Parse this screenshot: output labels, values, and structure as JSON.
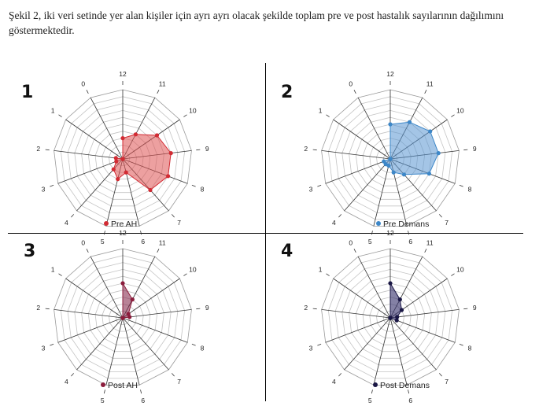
{
  "caption": "Şekil 2, iki veri setinde yer alan kişiler için ayrı ayrı olacak şekilde toplam pre ve post hastalık sayılarının dağılımını göstermektedir.",
  "chart_data": [
    {
      "type": "radar",
      "number": "1",
      "series": [
        {
          "name": "Pre AH",
          "color": "#d22b33",
          "fill": "rgba(222,82,82,0.55)",
          "values": [
            3,
            4,
            6,
            7,
            7,
            6,
            2,
            3,
            2,
            1,
            1,
            0,
            0
          ]
        }
      ],
      "axes": [
        "12",
        "11",
        "10",
        "9",
        "8",
        "7",
        "6",
        "5",
        "4",
        "3",
        "2",
        "1",
        "0"
      ],
      "rmax": 10
    },
    {
      "type": "radar",
      "number": "2",
      "series": [
        {
          "name": "Pre Demans",
          "color": "#3d87c8",
          "fill": "rgba(90,150,210,0.55)",
          "values": [
            5,
            6,
            7,
            7,
            6,
            3,
            2,
            1,
            1,
            1,
            0,
            0,
            0
          ]
        }
      ],
      "axes": [
        "12",
        "11",
        "10",
        "9",
        "8",
        "7",
        "6",
        "5",
        "4",
        "3",
        "2",
        "1",
        "0"
      ],
      "rmax": 10
    },
    {
      "type": "radar",
      "number": "3",
      "series": [
        {
          "name": "Post AH",
          "color": "#8b1d3c",
          "fill": "rgba(125,30,65,0.55)",
          "values": [
            5,
            3,
            1,
            1,
            0,
            0,
            0,
            0,
            0,
            0,
            0,
            0,
            0
          ]
        }
      ],
      "axes": [
        "12",
        "11",
        "10",
        "9",
        "8",
        "7",
        "6",
        "5",
        "4",
        "3",
        "2",
        "1",
        "0"
      ],
      "rmax": 10
    },
    {
      "type": "radar",
      "number": "4",
      "series": [
        {
          "name": "Post Demans",
          "color": "#1a1745",
          "fill": "rgba(50,45,105,0.6)",
          "values": [
            5,
            3,
            2,
            1,
            1,
            0,
            0,
            0,
            0,
            0,
            0,
            0,
            0
          ]
        }
      ],
      "axes": [
        "12",
        "11",
        "10",
        "9",
        "8",
        "7",
        "6",
        "5",
        "4",
        "3",
        "2",
        "1",
        "0"
      ],
      "rmax": 10
    }
  ]
}
